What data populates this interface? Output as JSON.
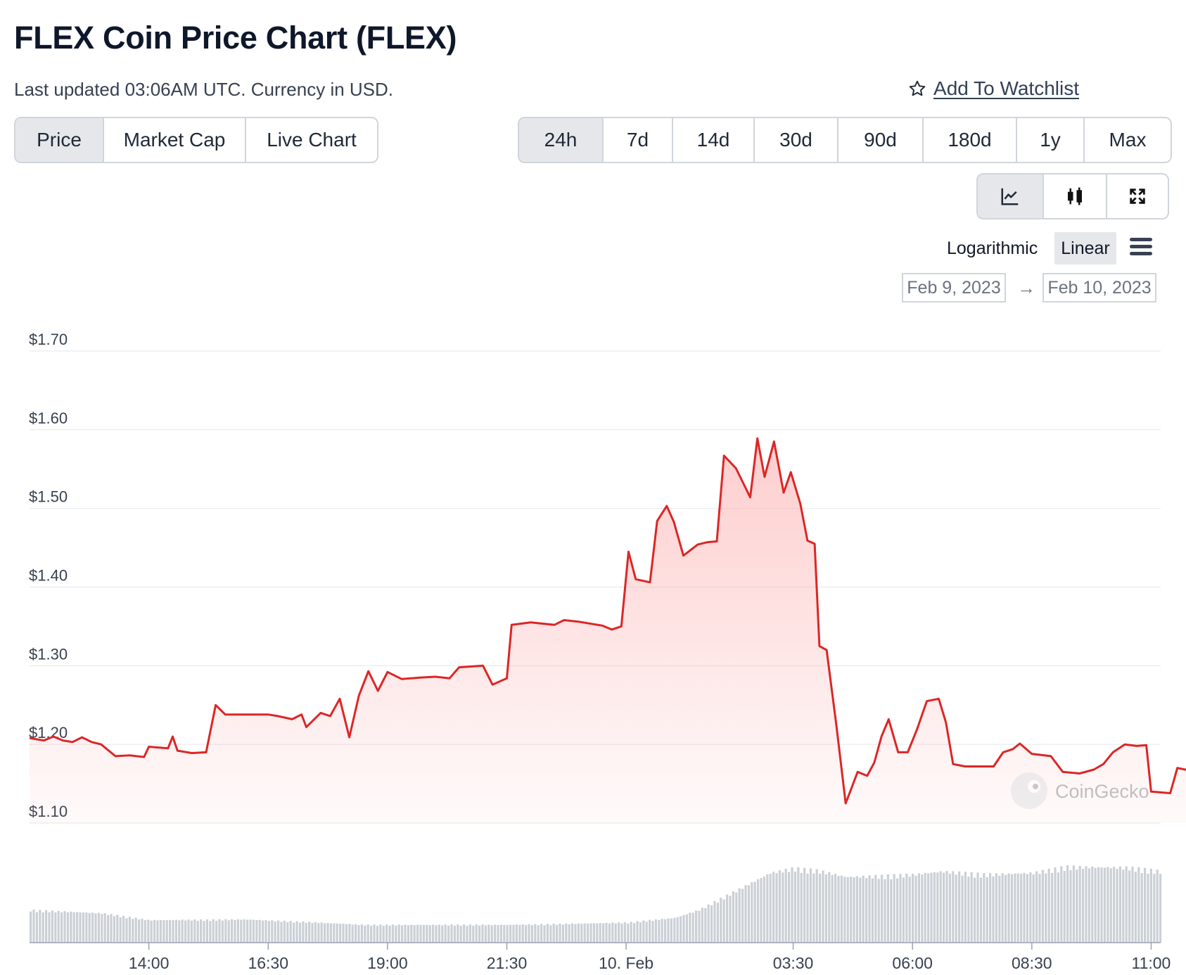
{
  "header": {
    "title": "FLEX Coin Price Chart (FLEX)",
    "subtitle": "Last updated 03:06AM UTC. Currency in USD.",
    "watchlist_label": "Add To Watchlist"
  },
  "view_tabs": [
    {
      "label": "Price",
      "active": true
    },
    {
      "label": "Market Cap",
      "active": false
    },
    {
      "label": "Live Chart",
      "active": false
    }
  ],
  "range_tabs": [
    {
      "label": "24h",
      "active": true
    },
    {
      "label": "7d",
      "active": false
    },
    {
      "label": "14d",
      "active": false
    },
    {
      "label": "30d",
      "active": false
    },
    {
      "label": "90d",
      "active": false
    },
    {
      "label": "180d",
      "active": false
    },
    {
      "label": "1y",
      "active": false
    },
    {
      "label": "Max",
      "active": false
    }
  ],
  "chart_type_buttons": [
    {
      "icon": "line-chart-icon",
      "active": true
    },
    {
      "icon": "candlestick-icon",
      "active": false
    },
    {
      "icon": "fullscreen-icon",
      "active": false
    }
  ],
  "scale": {
    "logarithmic": "Logarithmic",
    "linear": "Linear",
    "selected": "Linear"
  },
  "date_range": {
    "from": "Feb 9, 2023",
    "arrow": "→",
    "to": "Feb 10, 2023"
  },
  "watermark": "CoinGecko",
  "colors": {
    "line": "#dc2626",
    "fill": "#fca5a5",
    "volume": "#cbd0d6",
    "grid": "#e5e7eb",
    "active_tab": "#e5e7eb"
  },
  "chart_data": {
    "type": "line",
    "title": "",
    "xlabel": "",
    "ylabel": "",
    "y_tick_labels": [
      "$1.10",
      "$1.20",
      "$1.30",
      "$1.40",
      "$1.50",
      "$1.60",
      "$1.70"
    ],
    "y_tick_values": [
      1.1,
      1.2,
      1.3,
      1.4,
      1.5,
      1.6,
      1.7
    ],
    "ylim": [
      1.1,
      1.7
    ],
    "x_tick_labels": [
      "14:00",
      "16:30",
      "19:00",
      "21:30",
      "10. Feb",
      "03:30",
      "06:00",
      "08:30",
      "11:00"
    ],
    "x_tick_hours": [
      14,
      16.5,
      19,
      21.5,
      24,
      27.5,
      30,
      32.5,
      35
    ],
    "xlim_hours": [
      11.5,
      35.2
    ],
    "grid": true,
    "series": [
      {
        "values": [
          [
            11.5,
            1.208
          ],
          [
            11.8,
            1.205
          ],
          [
            12.0,
            1.21
          ],
          [
            12.2,
            1.205
          ],
          [
            12.4,
            1.203
          ],
          [
            12.6,
            1.209
          ],
          [
            12.8,
            1.203
          ],
          [
            13.0,
            1.2
          ],
          [
            13.3,
            1.185
          ],
          [
            13.6,
            1.186
          ],
          [
            13.9,
            1.184
          ],
          [
            14.0,
            1.197
          ],
          [
            14.4,
            1.195
          ],
          [
            14.5,
            1.21
          ],
          [
            14.6,
            1.192
          ],
          [
            14.9,
            1.189
          ],
          [
            15.2,
            1.19
          ],
          [
            15.4,
            1.25
          ],
          [
            15.6,
            1.238
          ],
          [
            16.0,
            1.238
          ],
          [
            16.5,
            1.238
          ],
          [
            16.7,
            1.236
          ],
          [
            17.0,
            1.232
          ],
          [
            17.2,
            1.238
          ],
          [
            17.3,
            1.222
          ],
          [
            17.6,
            1.24
          ],
          [
            17.8,
            1.236
          ],
          [
            18.0,
            1.258
          ],
          [
            18.2,
            1.209
          ],
          [
            18.4,
            1.262
          ],
          [
            18.6,
            1.293
          ],
          [
            18.8,
            1.268
          ],
          [
            19.0,
            1.292
          ],
          [
            19.3,
            1.283
          ],
          [
            19.7,
            1.285
          ],
          [
            20.0,
            1.286
          ],
          [
            20.3,
            1.284
          ],
          [
            20.5,
            1.298
          ],
          [
            21.0,
            1.3
          ],
          [
            21.2,
            1.276
          ],
          [
            21.5,
            1.284
          ],
          [
            21.6,
            1.352
          ],
          [
            22.0,
            1.355
          ],
          [
            22.5,
            1.352
          ],
          [
            22.7,
            1.358
          ],
          [
            23.0,
            1.356
          ],
          [
            23.5,
            1.351
          ],
          [
            23.7,
            1.346
          ],
          [
            23.9,
            1.35
          ],
          [
            24.05,
            1.445
          ],
          [
            24.2,
            1.41
          ],
          [
            24.5,
            1.406
          ],
          [
            24.65,
            1.484
          ],
          [
            24.85,
            1.503
          ],
          [
            25.0,
            1.483
          ],
          [
            25.2,
            1.44
          ],
          [
            25.5,
            1.454
          ],
          [
            25.7,
            1.457
          ],
          [
            25.9,
            1.458
          ],
          [
            26.05,
            1.567
          ],
          [
            26.3,
            1.551
          ],
          [
            26.6,
            1.514
          ],
          [
            26.75,
            1.589
          ],
          [
            26.9,
            1.54
          ],
          [
            27.1,
            1.585
          ],
          [
            27.3,
            1.52
          ],
          [
            27.45,
            1.546
          ],
          [
            27.65,
            1.506
          ],
          [
            27.8,
            1.459
          ],
          [
            27.95,
            1.455
          ],
          [
            28.05,
            1.325
          ],
          [
            28.2,
            1.32
          ],
          [
            28.4,
            1.227
          ],
          [
            28.6,
            1.125
          ],
          [
            28.85,
            1.165
          ],
          [
            29.05,
            1.16
          ],
          [
            29.2,
            1.177
          ],
          [
            29.35,
            1.21
          ],
          [
            29.5,
            1.232
          ],
          [
            29.7,
            1.19
          ],
          [
            29.9,
            1.19
          ],
          [
            30.1,
            1.22
          ],
          [
            30.3,
            1.255
          ],
          [
            30.55,
            1.258
          ],
          [
            30.7,
            1.228
          ],
          [
            30.85,
            1.175
          ],
          [
            31.1,
            1.172
          ],
          [
            31.4,
            1.172
          ],
          [
            31.7,
            1.172
          ],
          [
            31.9,
            1.19
          ],
          [
            32.1,
            1.194
          ],
          [
            32.25,
            1.201
          ],
          [
            32.5,
            1.188
          ],
          [
            32.9,
            1.185
          ],
          [
            33.15,
            1.165
          ],
          [
            33.5,
            1.163
          ],
          [
            33.8,
            1.168
          ],
          [
            34.0,
            1.175
          ],
          [
            34.2,
            1.19
          ],
          [
            34.45,
            1.2
          ],
          [
            34.7,
            1.198
          ],
          [
            34.9,
            1.199
          ],
          [
            35.0,
            1.14
          ],
          [
            35.4,
            1.138
          ],
          [
            35.55,
            1.17
          ],
          [
            35.8,
            1.167
          ]
        ]
      }
    ],
    "volume": {
      "visible": true,
      "relative_levels": [
        [
          11.5,
          0.42
        ],
        [
          13.0,
          0.38
        ],
        [
          14.0,
          0.29
        ],
        [
          16.0,
          0.3
        ],
        [
          17.5,
          0.26
        ],
        [
          18.5,
          0.23
        ],
        [
          19.2,
          0.23
        ],
        [
          21.5,
          0.23
        ],
        [
          22.5,
          0.24
        ],
        [
          24.0,
          0.26
        ],
        [
          25.0,
          0.32
        ],
        [
          25.5,
          0.42
        ],
        [
          26.0,
          0.58
        ],
        [
          26.5,
          0.74
        ],
        [
          27.0,
          0.9
        ],
        [
          27.5,
          0.96
        ],
        [
          28.0,
          0.93
        ],
        [
          28.6,
          0.85
        ],
        [
          29.3,
          0.86
        ],
        [
          30.0,
          0.88
        ],
        [
          30.6,
          0.92
        ],
        [
          31.5,
          0.88
        ],
        [
          32.5,
          0.9
        ],
        [
          33.2,
          0.98
        ],
        [
          34.5,
          0.97
        ],
        [
          35.2,
          0.92
        ],
        [
          35.8,
          0.94
        ]
      ]
    }
  }
}
